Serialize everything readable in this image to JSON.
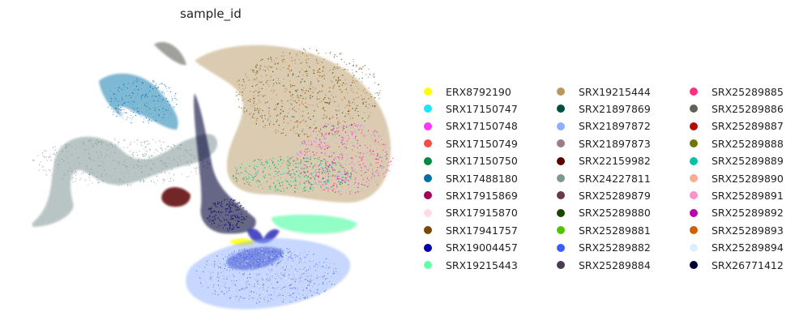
{
  "chart_data": {
    "type": "scatter",
    "title": "sample_id",
    "xlabel": "",
    "ylabel": "",
    "grid": false,
    "axes_visible": false,
    "legend_placement": "right",
    "legend_columns": 3,
    "series": [
      {
        "name": "ERX8792190",
        "color": "#ffff00"
      },
      {
        "name": "SRX17150747",
        "color": "#1ce6ff"
      },
      {
        "name": "SRX17150748",
        "color": "#ff34ff"
      },
      {
        "name": "SRX17150749",
        "color": "#ff4a46"
      },
      {
        "name": "SRX17150750",
        "color": "#008941"
      },
      {
        "name": "SRX17488180",
        "color": "#006fa6"
      },
      {
        "name": "SRX17915869",
        "color": "#a30059"
      },
      {
        "name": "SRX17915870",
        "color": "#ffdbe5"
      },
      {
        "name": "SRX17941757",
        "color": "#7a4900"
      },
      {
        "name": "SRX19004457",
        "color": "#0000a6"
      },
      {
        "name": "SRX19215443",
        "color": "#63ffac"
      },
      {
        "name": "SRX19215444",
        "color": "#b79762"
      },
      {
        "name": "SRX21897869",
        "color": "#004d43"
      },
      {
        "name": "SRX21897872",
        "color": "#8fb0ff"
      },
      {
        "name": "SRX21897873",
        "color": "#997d87"
      },
      {
        "name": "SRX22159982",
        "color": "#5a0007"
      },
      {
        "name": "SRX24227811",
        "color": "#809693"
      },
      {
        "name": "SRX25289879",
        "color": "#6a3a4c"
      },
      {
        "name": "SRX25289880",
        "color": "#1b4400"
      },
      {
        "name": "SRX25289881",
        "color": "#4fc601"
      },
      {
        "name": "SRX25289882",
        "color": "#3b5dff"
      },
      {
        "name": "SRX25289884",
        "color": "#4a3b53"
      },
      {
        "name": "SRX25289885",
        "color": "#ff2f80"
      },
      {
        "name": "SRX25289886",
        "color": "#61615a"
      },
      {
        "name": "SRX25289887",
        "color": "#ba0900"
      },
      {
        "name": "SRX25289888",
        "color": "#6b7900"
      },
      {
        "name": "SRX25289889",
        "color": "#00c2a0"
      },
      {
        "name": "SRX25289890",
        "color": "#ffaa92"
      },
      {
        "name": "SRX25289891",
        "color": "#ff90c9"
      },
      {
        "name": "SRX25289892",
        "color": "#b903aa"
      },
      {
        "name": "SRX25289893",
        "color": "#d16100"
      },
      {
        "name": "SRX25289894",
        "color": "#ddefff"
      },
      {
        "name": "SRX26771412",
        "color": "#000035"
      }
    ]
  }
}
